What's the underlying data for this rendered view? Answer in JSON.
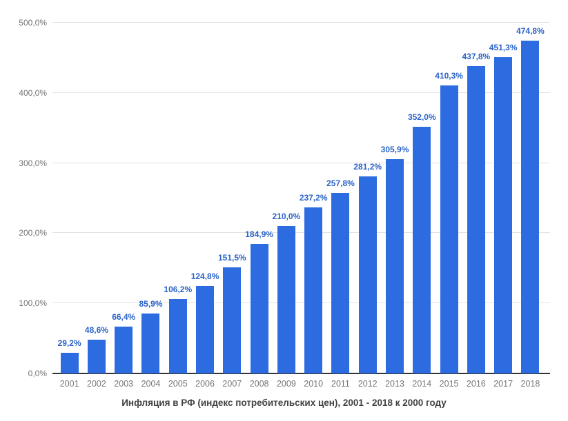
{
  "chart_data": {
    "type": "bar",
    "title": "Инфляция в РФ (индекс потребительских цен), 2001 - 2018 к 2000 году",
    "categories": [
      "2001",
      "2002",
      "2003",
      "2004",
      "2005",
      "2006",
      "2007",
      "2008",
      "2009",
      "2010",
      "2011",
      "2012",
      "2013",
      "2014",
      "2015",
      "2016",
      "2017",
      "2018"
    ],
    "values": [
      29.2,
      48.6,
      66.4,
      85.9,
      106.2,
      124.8,
      151.5,
      184.9,
      210.0,
      237.2,
      257.8,
      281.2,
      305.9,
      352.0,
      410.3,
      437.8,
      451.3,
      474.8
    ],
    "value_labels": [
      "29,2%",
      "48,6%",
      "66,4%",
      "85,9%",
      "106,2%",
      "124,8%",
      "151,5%",
      "184,9%",
      "210,0%",
      "237,2%",
      "257,8%",
      "281,2%",
      "305,9%",
      "352,0%",
      "410,3%",
      "437,8%",
      "451,3%",
      "474,8%"
    ],
    "xlabel": "",
    "ylabel": "",
    "ylim": [
      0,
      500
    ],
    "y_step": 100,
    "y_tick_labels": [
      "0,0%",
      "100,0%",
      "200,0%",
      "300,0%",
      "400,0%",
      "500,0%"
    ],
    "grid": true,
    "legend": "none",
    "colors": {
      "bar": "#2d6be0",
      "annotation": "#2a63c9",
      "axis_text": "#757575",
      "gridline": "#e2e2e2",
      "baseline": "#333333",
      "title": "#424242"
    }
  }
}
